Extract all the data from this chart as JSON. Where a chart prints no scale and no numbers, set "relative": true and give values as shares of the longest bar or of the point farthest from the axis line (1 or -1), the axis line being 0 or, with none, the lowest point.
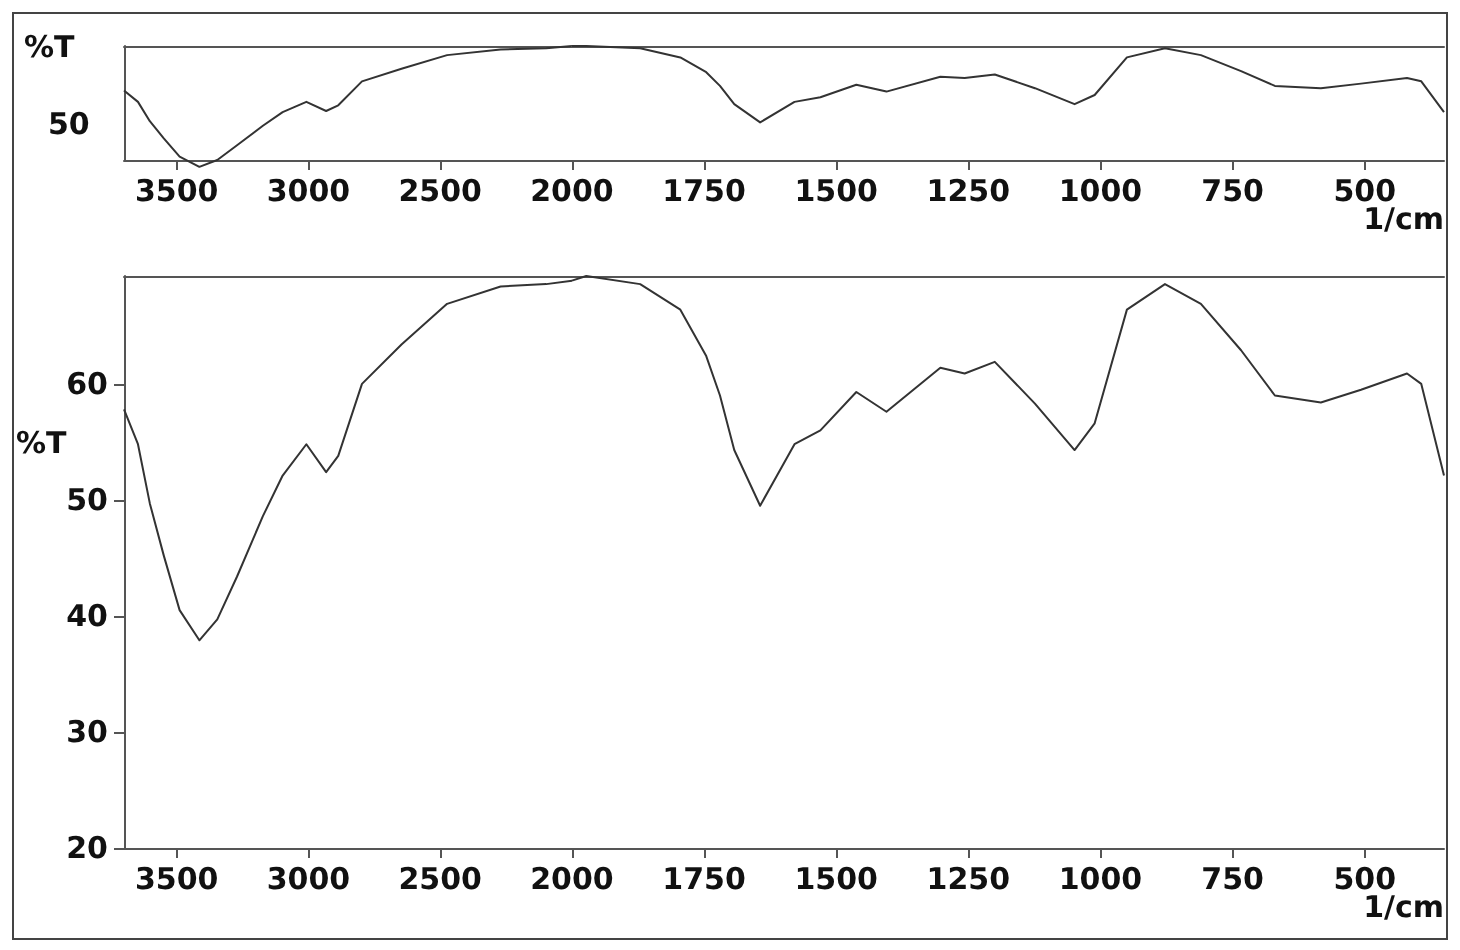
{
  "chart_data": [
    {
      "type": "line",
      "relative": true,
      "ylabel": "%T",
      "annotations": [
        "50"
      ],
      "xlim": [
        3700,
        2000
      ],
      "xticks": [
        3500,
        3000,
        2500,
        2000
      ],
      "x": [
        3700,
        3647,
        3602,
        3549,
        3489,
        3414,
        3346,
        3271,
        3173,
        3098,
        3008,
        2933,
        2887,
        2797,
        2647,
        2474,
        2271,
        2098,
        2000
      ],
      "series": [
        {
          "color": "#333333",
          "values": [
            0.61,
            0.51,
            0.34,
            0.19,
            0.03,
            -0.06,
            0,
            0.13,
            0.3,
            0.42,
            0.51,
            0.43,
            0.48,
            0.69,
            0.8,
            0.92,
            0.97,
            0.98,
            1
          ]
        }
      ]
    },
    {
      "type": "line",
      "relative": true,
      "xlabel": "1/cm",
      "tick_labels": "x",
      "xlim": [
        2000,
        350
      ],
      "xticks": [
        1750,
        1500,
        1250,
        1000,
        750,
        500
      ],
      "x": [
        2000,
        1973,
        1871,
        1795,
        1746,
        1720,
        1693,
        1644,
        1579,
        1530,
        1462,
        1405,
        1303,
        1257,
        1200,
        1124,
        1049,
        1011,
        950,
        878,
        810,
        734,
        670,
        583,
        507,
        420,
        393,
        350
      ],
      "series": [
        {
          "color": "#333333",
          "values": [
            1,
            1,
            0.98,
            0.9,
            0.77,
            0.65,
            0.49,
            0.33,
            0.51,
            0.55,
            0.66,
            0.6,
            0.73,
            0.72,
            0.75,
            0.63,
            0.49,
            0.57,
            0.9,
            0.98,
            0.92,
            0.78,
            0.65,
            0.63,
            0.67,
            0.72,
            0.69,
            0.42
          ]
        }
      ]
    },
    {
      "type": "line",
      "ylabel": "%T",
      "xlim": [
        3700,
        2000
      ],
      "ylim": [
        20,
        69.3
      ],
      "xticks": [
        3500,
        3000,
        2500,
        2000
      ],
      "yticks": [
        20,
        30,
        40,
        50,
        60
      ],
      "x": [
        3700,
        3647,
        3602,
        3549,
        3489,
        3414,
        3346,
        3271,
        3173,
        3098,
        3008,
        2933,
        2887,
        2797,
        2647,
        2474,
        2271,
        2098,
        2000
      ],
      "series": [
        {
          "color": "#333333",
          "values": [
            57.8,
            54.8,
            49.7,
            45.2,
            40.5,
            37.9,
            39.7,
            43.4,
            48.6,
            52.1,
            54.8,
            52.4,
            53.8,
            60.0,
            63.4,
            66.9,
            68.4,
            68.6,
            68.9
          ]
        }
      ]
    },
    {
      "type": "line",
      "xlabel": "1/cm",
      "tick_labels": "x",
      "xlim": [
        2000,
        350
      ],
      "ylim": [
        20,
        69.3
      ],
      "xticks": [
        1750,
        1500,
        1250,
        1000,
        750,
        500
      ],
      "x": [
        2000,
        1973,
        1871,
        1795,
        1746,
        1720,
        1693,
        1644,
        1579,
        1530,
        1462,
        1405,
        1303,
        1257,
        1200,
        1124,
        1049,
        1011,
        950,
        878,
        810,
        734,
        670,
        583,
        507,
        420,
        393,
        350
      ],
      "series": [
        {
          "color": "#333333",
          "values": [
            68.9,
            69.3,
            68.6,
            66.4,
            62.4,
            59.0,
            54.3,
            49.5,
            54.8,
            56.0,
            59.3,
            57.6,
            61.4,
            60.9,
            61.9,
            58.3,
            54.3,
            56.6,
            66.4,
            68.6,
            66.9,
            62.9,
            59.0,
            58.4,
            59.5,
            60.9,
            60.0,
            52.1
          ]
        }
      ]
    }
  ]
}
